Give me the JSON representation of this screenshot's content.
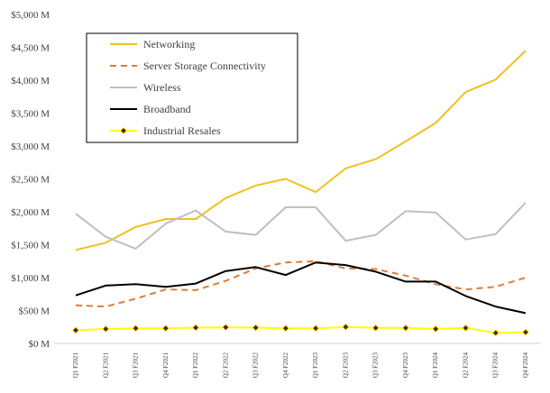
{
  "chart_data": {
    "type": "line",
    "title": "",
    "xlabel": "",
    "ylabel": "",
    "ylim": [
      0,
      5000
    ],
    "yticks": [
      0,
      500,
      1000,
      1500,
      2000,
      2500,
      3000,
      3500,
      4000,
      4500,
      5000
    ],
    "ytick_labels": [
      "$0 M",
      "$500 M",
      "$1,000 M",
      "$1,500 M",
      "$2,000 M",
      "$2,500 M",
      "$3,000 M",
      "$3,500 M",
      "$4,000 M",
      "$4,500 M",
      "$5,000 M"
    ],
    "grid": false,
    "legend_position": "top-left",
    "categories": [
      "Q1 F2021",
      "Q2 F2021",
      "Q3 F2021",
      "Q4 F2021",
      "Q1 F2022",
      "Q2 F2022",
      "Q3 F2022",
      "Q4 F2022",
      "Q1 F2023",
      "Q2 F2023",
      "Q3 F2023",
      "Q4 F2023",
      "Q1 F2024",
      "Q2 F2024",
      "Q3 F2024",
      "Q4 F2024"
    ],
    "series": [
      {
        "name": "Networking",
        "color": "#f0c020",
        "style": "solid",
        "marker": "none",
        "values": [
          1420,
          1530,
          1770,
          1890,
          1890,
          2210,
          2400,
          2500,
          2300,
          2660,
          2800,
          3070,
          3350,
          3820,
          4010,
          4450
        ]
      },
      {
        "name": "Server Storage Connectivity",
        "color": "#e07b39",
        "style": "dashed",
        "marker": "none",
        "values": [
          580,
          560,
          680,
          820,
          810,
          950,
          1140,
          1230,
          1250,
          1140,
          1130,
          1030,
          900,
          820,
          860,
          1000
        ]
      },
      {
        "name": "Wireless",
        "color": "#bfbfbf",
        "style": "solid",
        "marker": "none",
        "values": [
          1970,
          1620,
          1440,
          1820,
          2020,
          1700,
          1650,
          2070,
          2070,
          1560,
          1650,
          2010,
          1990,
          1580,
          1660,
          2140
        ]
      },
      {
        "name": "Broadband",
        "color": "#000000",
        "style": "solid",
        "marker": "none",
        "values": [
          730,
          880,
          900,
          860,
          910,
          1100,
          1160,
          1040,
          1230,
          1190,
          1090,
          940,
          940,
          720,
          560,
          460
        ]
      },
      {
        "name": "Industrial Resales",
        "color": "#ffff00",
        "style": "solid",
        "marker": "diamond",
        "marker_color": "#5b1a4d",
        "values": [
          200,
          220,
          230,
          230,
          240,
          245,
          240,
          230,
          230,
          250,
          235,
          235,
          220,
          235,
          160,
          170
        ]
      }
    ]
  }
}
